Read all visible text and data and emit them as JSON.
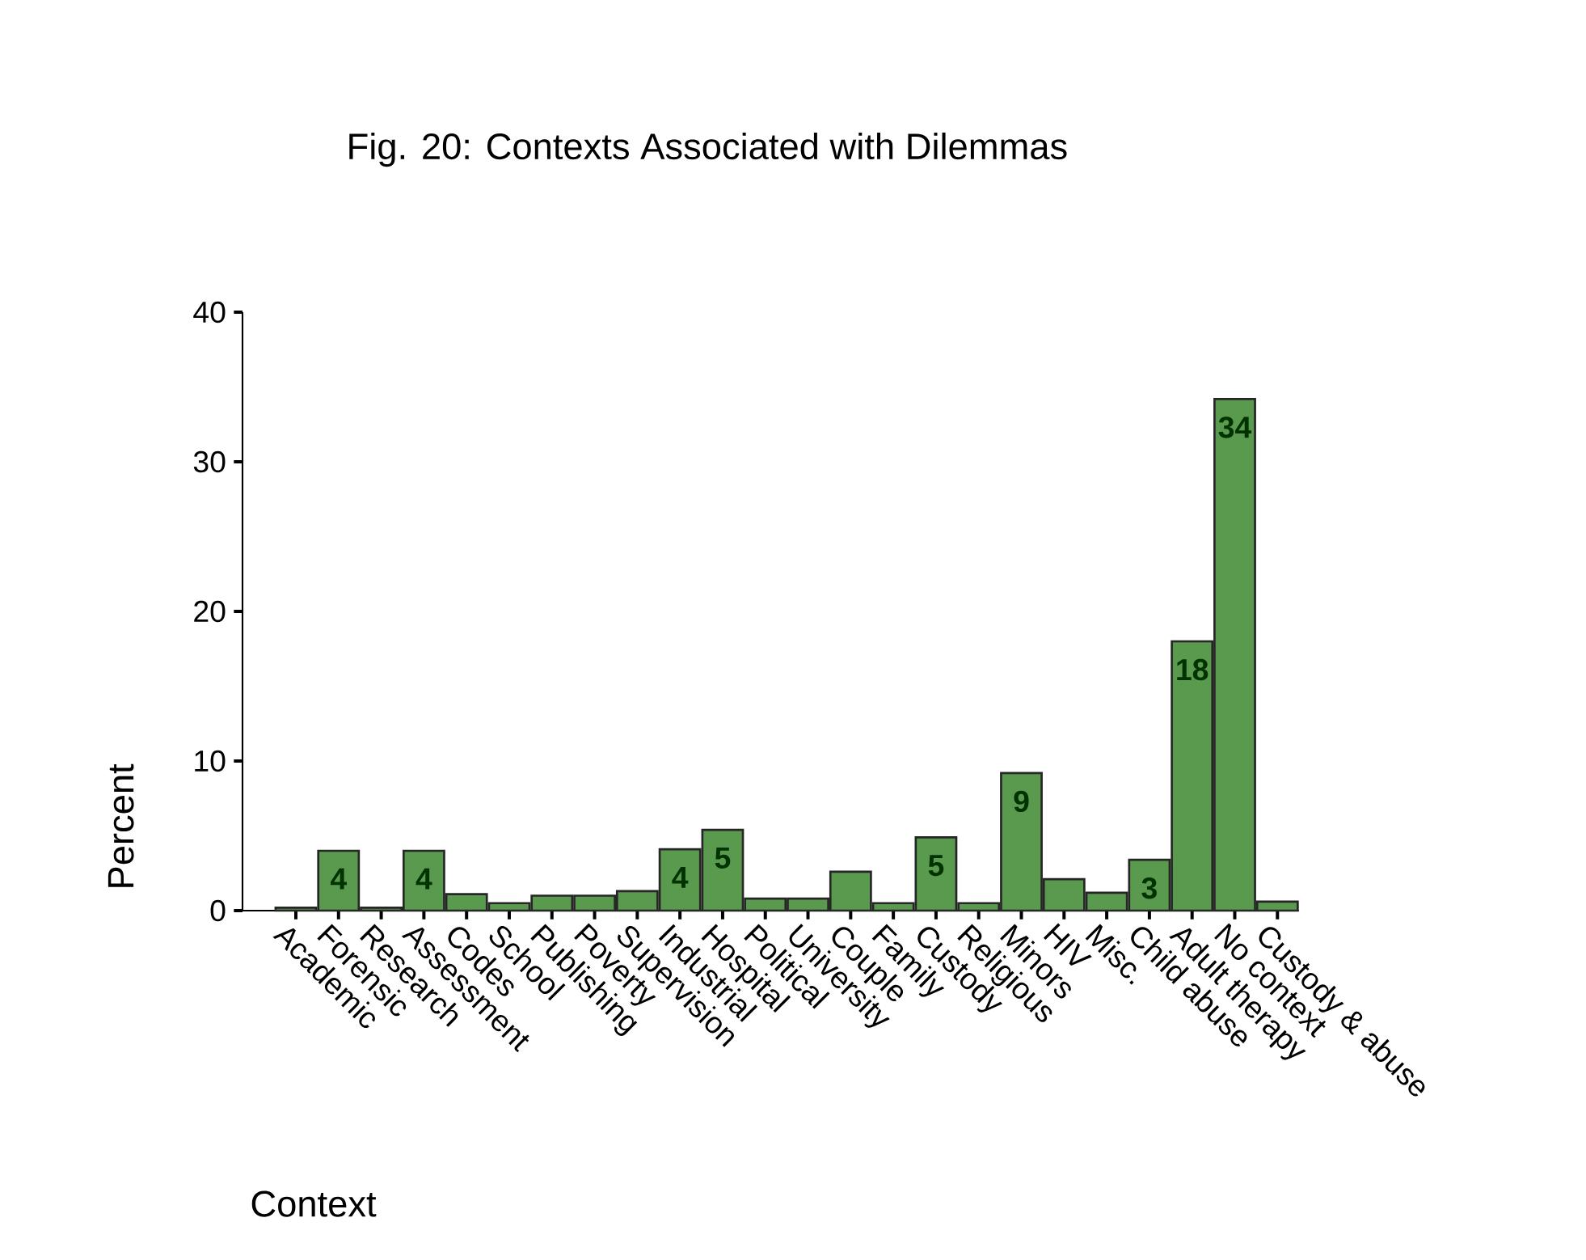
{
  "chart_data": {
    "type": "bar",
    "title": "Fig. 20: Contexts Associated with Dilemmas",
    "xlabel": "Context",
    "ylabel": "Percent",
    "categories": [
      "Academic",
      "Forensic",
      "Research",
      "Assessment",
      "Codes",
      "School",
      "Publishing",
      "Poverty",
      "Supervision",
      "Industrial",
      "Hospital",
      "Political",
      "University",
      "Couple",
      "Family",
      "Custody",
      "Religious",
      "Minors",
      "HIV",
      "Misc.",
      "Child abuse",
      "Adult therapy",
      "No context",
      "Custody & abuse"
    ],
    "values": [
      0.2,
      4,
      0.2,
      4,
      1.1,
      0.5,
      1,
      1,
      1.3,
      4.1,
      5.4,
      0.8,
      0.8,
      2.6,
      0.5,
      4.9,
      0.5,
      9.2,
      2.1,
      1.2,
      3.4,
      18,
      34.2,
      0.6
    ],
    "value_labels": [
      null,
      "4",
      null,
      "4",
      null,
      null,
      null,
      null,
      null,
      "4",
      "5",
      null,
      null,
      null,
      null,
      "5",
      null,
      "9",
      null,
      null,
      "3",
      "18",
      "34",
      null
    ],
    "color": "#5a9a4e",
    "ylim": [
      0,
      40
    ],
    "yticks": [
      0,
      10,
      20,
      30,
      40
    ],
    "grid": false
  }
}
